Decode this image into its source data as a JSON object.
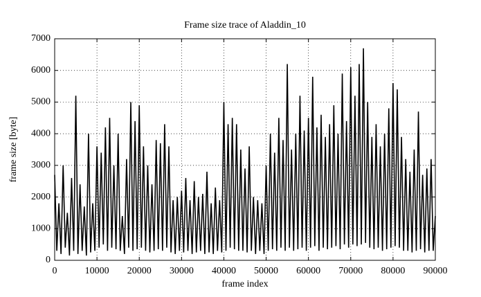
{
  "chart_data": {
    "type": "line",
    "title": "Frame size trace of Aladdin_10",
    "x_label": "frame index",
    "y_label": "frame size [byte]",
    "xlim": [
      0,
      90000
    ],
    "xticks": [
      0,
      10000,
      20000,
      30000,
      40000,
      50000,
      60000,
      70000,
      80000,
      90000
    ],
    "ylim": [
      0,
      7000
    ],
    "yticks": [
      0,
      1000,
      2000,
      3000,
      4000,
      5000,
      6000,
      7000
    ],
    "grid": true,
    "color": "#000000",
    "x": [
      0,
      500,
      1000,
      1500,
      2000,
      2500,
      3000,
      3500,
      4000,
      4500,
      5000,
      5500,
      6000,
      6500,
      7000,
      7500,
      8000,
      8500,
      9000,
      9500,
      10000,
      10500,
      11000,
      11500,
      12000,
      12500,
      13000,
      13500,
      14000,
      14500,
      15000,
      15500,
      16000,
      16500,
      17000,
      17500,
      18000,
      18500,
      19000,
      19500,
      20000,
      20500,
      21000,
      21500,
      22000,
      22500,
      23000,
      23500,
      24000,
      24500,
      25000,
      25500,
      26000,
      26500,
      27000,
      27500,
      28000,
      28500,
      29000,
      29500,
      30000,
      30500,
      31000,
      31500,
      32000,
      32500,
      33000,
      33500,
      34000,
      34500,
      35000,
      35500,
      36000,
      36500,
      37000,
      37500,
      38000,
      38500,
      39000,
      39500,
      40000,
      40500,
      41000,
      41500,
      42000,
      42500,
      43000,
      43500,
      44000,
      44500,
      45000,
      45500,
      46000,
      46500,
      47000,
      47500,
      48000,
      48500,
      49000,
      49500,
      50000,
      50500,
      51000,
      51500,
      52000,
      52500,
      53000,
      53500,
      54000,
      54500,
      55000,
      55500,
      56000,
      56500,
      57000,
      57500,
      58000,
      58500,
      59000,
      59500,
      60000,
      60500,
      61000,
      61500,
      62000,
      62500,
      63000,
      63500,
      64000,
      64500,
      65000,
      65500,
      66000,
      66500,
      67000,
      67500,
      68000,
      68500,
      69000,
      69500,
      70000,
      70500,
      71000,
      71500,
      72000,
      72500,
      73000,
      73500,
      74000,
      74500,
      75000,
      75500,
      76000,
      76500,
      77000,
      77500,
      78000,
      78500,
      79000,
      79500,
      80000,
      80500,
      81000,
      81500,
      82000,
      82500,
      83000,
      83500,
      84000,
      84500,
      85000,
      85500,
      86000,
      86500,
      87000,
      87500,
      88000,
      88500,
      89000,
      89500,
      90000
    ],
    "values": [
      2700,
      300,
      1800,
      200,
      3000,
      400,
      1500,
      150,
      2600,
      300,
      5200,
      200,
      2400,
      300,
      1700,
      150,
      4000,
      250,
      1800,
      300,
      3600,
      400,
      3400,
      500,
      4200,
      300,
      4500,
      400,
      3000,
      350,
      4000,
      300,
      1400,
      200,
      3200,
      400,
      5000,
      300,
      4400,
      350,
      4900,
      400,
      3600,
      300,
      3000,
      250,
      2400,
      300,
      3800,
      350,
      3700,
      300,
      4300,
      400,
      3600,
      250,
      1900,
      200,
      2000,
      300,
      2200,
      250,
      2600,
      300,
      1900,
      200,
      2500,
      250,
      2000,
      300,
      2100,
      200,
      2800,
      250,
      1800,
      200,
      2300,
      300,
      1900,
      250,
      5000,
      300,
      4300,
      400,
      4500,
      350,
      4300,
      300,
      3500,
      300,
      2900,
      250,
      3600,
      300,
      2000,
      200,
      1900,
      300,
      1800,
      200,
      3000,
      300,
      4000,
      350,
      3400,
      300,
      4500,
      400,
      3800,
      300,
      6200,
      400,
      3500,
      300,
      4000,
      350,
      5200,
      400,
      4100,
      300,
      4500,
      400,
      5800,
      450,
      4200,
      300,
      4600,
      400,
      3900,
      350,
      4300,
      400,
      4900,
      450,
      4000,
      350,
      5900,
      500,
      4400,
      400,
      6100,
      500,
      5200,
      450,
      6200,
      500,
      6700,
      550,
      5000,
      400,
      3900,
      350,
      4300,
      400,
      3600,
      300,
      4000,
      350,
      4800,
      400,
      5600,
      450,
      5400,
      400,
      3900,
      300,
      3200,
      300,
      2800,
      250,
      3500,
      300,
      4700,
      350,
      2700,
      250,
      2900,
      300,
      3200,
      300,
      1400
    ]
  }
}
